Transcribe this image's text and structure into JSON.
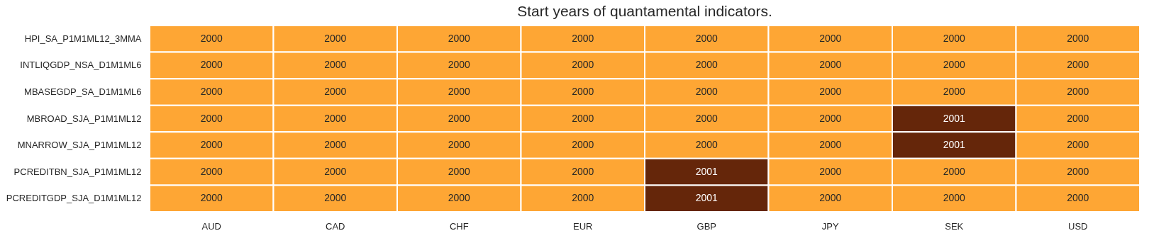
{
  "chart_data": {
    "type": "heatmap",
    "title": "Start years of quantamental indicators.",
    "categories": [
      "AUD",
      "CAD",
      "CHF",
      "EUR",
      "GBP",
      "JPY",
      "SEK",
      "USD"
    ],
    "y_categories": [
      "HPI_SA_P1M1ML12_3MMA",
      "INTLIQGDP_NSA_D1M1ML6",
      "MBASEGDP_SA_D1M1ML6",
      "MBROAD_SJA_P1M1ML12",
      "MNARROW_SJA_P1M1ML12",
      "PCREDITBN_SJA_P1M1ML12",
      "PCREDITGDP_SJA_D1M1ML12"
    ],
    "cells": [
      [
        2000,
        2000,
        2000,
        2000,
        2000,
        2000,
        2000,
        2000
      ],
      [
        2000,
        2000,
        2000,
        2000,
        2000,
        2000,
        2000,
        2000
      ],
      [
        2000,
        2000,
        2000,
        2000,
        2000,
        2000,
        2000,
        2000
      ],
      [
        2000,
        2000,
        2000,
        2000,
        2000,
        2000,
        2001,
        2000
      ],
      [
        2000,
        2000,
        2000,
        2000,
        2000,
        2000,
        2001,
        2000
      ],
      [
        2000,
        2000,
        2000,
        2000,
        2001,
        2000,
        2000,
        2000
      ],
      [
        2000,
        2000,
        2000,
        2000,
        2001,
        2000,
        2000,
        2000
      ]
    ],
    "colors": [
      "#fea634",
      "#65260a"
    ],
    "data_labels": true,
    "legend": false
  }
}
